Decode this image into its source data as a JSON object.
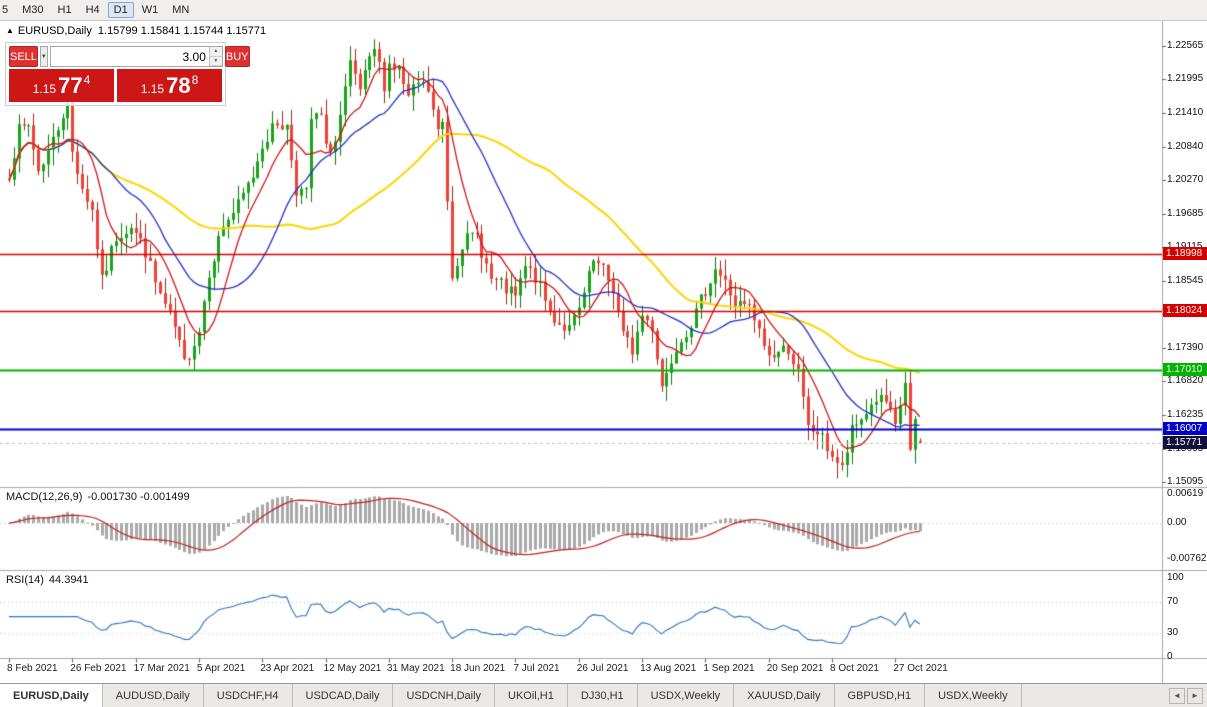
{
  "toolbar": {
    "timeframes": [
      {
        "label": "5",
        "active": false
      },
      {
        "label": "M30",
        "active": false
      },
      {
        "label": "H1",
        "active": false
      },
      {
        "label": "H4",
        "active": false
      },
      {
        "label": "D1",
        "active": true
      },
      {
        "label": "W1",
        "active": false
      },
      {
        "label": "MN",
        "active": false
      }
    ]
  },
  "chart_header": {
    "collapse_icon": "▲",
    "symbol_label": "EURUSD,Daily",
    "ohlc": "1.15799 1.15841 1.15744 1.15771"
  },
  "trade_panel": {
    "sell_label": "SELL",
    "buy_label": "BUY",
    "volume": "3.00",
    "dropdown_icon": "▼",
    "spin_up_icon": "▲",
    "spin_down_icon": "▼",
    "bid": {
      "prefix": "1.15",
      "big": "77",
      "sup": "4"
    },
    "ask": {
      "prefix": "1.15",
      "big": "78",
      "sup": "8"
    }
  },
  "price_axis": {
    "ticks": [
      "1.22565",
      "1.21995",
      "1.21410",
      "1.20840",
      "1.20270",
      "1.19685",
      "1.19115",
      "1.18545",
      "1.17975",
      "1.17390",
      "1.16820",
      "1.16235",
      "1.15665",
      "1.15095"
    ]
  },
  "levels": [
    {
      "price": 1.18998,
      "label": "1.18998",
      "line_color": "#d40000",
      "badge_color": "#d40000",
      "width": 1.5,
      "dashed": false
    },
    {
      "price": 1.18024,
      "label": "1.18024",
      "line_color": "#d40000",
      "badge_color": "#d40000",
      "width": 1.5,
      "dashed": false
    },
    {
      "price": 1.1701,
      "label": "1.17010",
      "line_color": "#00b400",
      "badge_color": "#00b400",
      "width": 2,
      "dashed": false
    },
    {
      "price": 1.16007,
      "label": "1.16007",
      "line_color": "#0000d0",
      "badge_color": "#0000c8",
      "width": 2,
      "dashed": false
    },
    {
      "price": 1.15771,
      "label": "1.15771",
      "line_color": "#c0c0c0",
      "badge_color": "#101038",
      "width": 1,
      "dashed": true
    }
  ],
  "macd_panel": {
    "title": "MACD(12,26,9)",
    "values": "-0.001730 -0.001499",
    "axis": [
      {
        "v": 0.00619,
        "label": "0.00619"
      },
      {
        "v": 0,
        "label": "0.00"
      },
      {
        "v": -0.00762,
        "label": "-0.00762"
      }
    ]
  },
  "rsi_panel": {
    "title": "RSI(14)",
    "value": "44.3941",
    "axis": [
      {
        "v": 100,
        "label": "100"
      },
      {
        "v": 70,
        "label": "70"
      },
      {
        "v": 30,
        "label": "30"
      },
      {
        "v": 0,
        "label": "0"
      }
    ],
    "levels": [
      70,
      30
    ]
  },
  "date_axis": [
    "8 Feb 2021",
    "26 Feb 2021",
    "17 Mar 2021",
    "5 Apr 2021",
    "23 Apr 2021",
    "12 May 2021",
    "31 May 2021",
    "18 Jun 2021",
    "7 Jul 2021",
    "26 Jul 2021",
    "13 Aug 2021",
    "1 Sep 2021",
    "20 Sep 2021",
    "8 Oct 2021",
    "27 Oct 2021"
  ],
  "tabs": {
    "items": [
      {
        "label": "EURUSD,Daily",
        "active": true
      },
      {
        "label": "AUDUSD,Daily",
        "active": false
      },
      {
        "label": "USDCHF,H4",
        "active": false
      },
      {
        "label": "USDCAD,Daily",
        "active": false
      },
      {
        "label": "USDCNH,Daily",
        "active": false
      },
      {
        "label": "UKOil,H1",
        "active": false
      },
      {
        "label": "DJ30,H1",
        "active": false
      },
      {
        "label": "USDX,Weekly",
        "active": false
      },
      {
        "label": "XAUUSD,Daily",
        "active": false
      },
      {
        "label": "GBPUSD,H1",
        "active": false
      },
      {
        "label": "USDX,Weekly",
        "active": false
      }
    ],
    "scroll_left": "◄",
    "scroll_right": "►"
  },
  "colors": {
    "candle_up": "#18a318",
    "candle_down": "#ef4135",
    "ma_fast": "#d01616",
    "ma_mid": "#2330c8",
    "ma_slow": "#ffd400",
    "macd_hist": "#a9a9a9",
    "macd_signal": "#c02020",
    "rsi_line": "#2e75c3",
    "trade_red": "#cd1717"
  },
  "chart_data": {
    "type": "candlestick",
    "symbol": "EURUSD",
    "timeframe": "Daily",
    "bars": 188,
    "ohlc_current": {
      "open": 1.15799,
      "high": 1.15841,
      "low": 1.15744,
      "close": 1.15771
    },
    "y_axis_ticks": [
      1.22565,
      1.21995,
      1.2141,
      1.2084,
      1.2027,
      1.19685,
      1.19115,
      1.18545,
      1.17975,
      1.1739,
      1.1682,
      1.16235,
      1.15665,
      1.15095
    ],
    "x_axis_labels": [
      "8 Feb 2021",
      "26 Feb 2021",
      "17 Mar 2021",
      "5 Apr 2021",
      "23 Apr 2021",
      "12 May 2021",
      "31 May 2021",
      "18 Jun 2021",
      "7 Jul 2021",
      "26 Jul 2021",
      "13 Aug 2021",
      "1 Sep 2021",
      "20 Sep 2021",
      "8 Oct 2021",
      "27 Oct 2021"
    ],
    "horizontal_levels": [
      1.18998,
      1.18024,
      1.1701,
      1.16007
    ],
    "bid": 1.15771,
    "anchors": [
      [
        0,
        1.204
      ],
      [
        2,
        1.211
      ],
      [
        4,
        1.212
      ],
      [
        6,
        1.2043
      ],
      [
        9,
        1.2095
      ],
      [
        12,
        1.2165
      ],
      [
        13,
        1.2075
      ],
      [
        15,
        1.2015
      ],
      [
        17,
        1.1975
      ],
      [
        19,
        1.1852
      ],
      [
        22,
        1.193
      ],
      [
        25,
        1.195
      ],
      [
        28,
        1.1905
      ],
      [
        30,
        1.185
      ],
      [
        32,
        1.181
      ],
      [
        34,
        1.1772
      ],
      [
        36,
        1.1712
      ],
      [
        39,
        1.177
      ],
      [
        41,
        1.1872
      ],
      [
        44,
        1.195
      ],
      [
        47,
        1.1982
      ],
      [
        50,
        1.2035
      ],
      [
        52,
        1.209
      ],
      [
        55,
        1.2125
      ],
      [
        57,
        1.2118
      ],
      [
        59,
        1.2012
      ],
      [
        61,
        1.2002
      ],
      [
        62,
        1.213
      ],
      [
        64,
        1.2135
      ],
      [
        65,
        1.2078
      ],
      [
        67,
        1.2092
      ],
      [
        70,
        1.222
      ],
      [
        72,
        1.218
      ],
      [
        75,
        1.225
      ],
      [
        77,
        1.2192
      ],
      [
        78,
        1.2226
      ],
      [
        80,
        1.2215
      ],
      [
        82,
        1.2165
      ],
      [
        84,
        1.2192
      ],
      [
        86,
        1.218
      ],
      [
        88,
        1.2108
      ],
      [
        89,
        1.2125
      ],
      [
        90,
        1.1995
      ],
      [
        91,
        1.1865
      ],
      [
        93,
        1.192
      ],
      [
        96,
        1.1932
      ],
      [
        99,
        1.1855
      ],
      [
        101,
        1.1845
      ],
      [
        104,
        1.1825
      ],
      [
        106,
        1.1876
      ],
      [
        108,
        1.186
      ],
      [
        111,
        1.18
      ],
      [
        113,
        1.1782
      ],
      [
        115,
        1.177
      ],
      [
        117,
        1.1802
      ],
      [
        120,
        1.1886
      ],
      [
        122,
        1.187
      ],
      [
        124,
        1.184
      ],
      [
        126,
        1.176
      ],
      [
        128,
        1.1736
      ],
      [
        130,
        1.1795
      ],
      [
        132,
        1.1777
      ],
      [
        134,
        1.1675
      ],
      [
        135,
        1.1697
      ],
      [
        137,
        1.1745
      ],
      [
        139,
        1.177
      ],
      [
        141,
        1.1797
      ],
      [
        143,
        1.184
      ],
      [
        145,
        1.1876
      ],
      [
        147,
        1.185
      ],
      [
        149,
        1.1815
      ],
      [
        152,
        1.1806
      ],
      [
        154,
        1.1765
      ],
      [
        156,
        1.1725
      ],
      [
        158,
        1.1732
      ],
      [
        160,
        1.174
      ],
      [
        162,
        1.1695
      ],
      [
        164,
        1.16
      ],
      [
        166,
        1.1595
      ],
      [
        169,
        1.1556
      ],
      [
        171,
        1.153
      ],
      [
        173,
        1.1595
      ],
      [
        176,
        1.163
      ],
      [
        178,
        1.1652
      ],
      [
        180,
        1.1645
      ],
      [
        182,
        1.16
      ],
      [
        184,
        1.1681
      ],
      [
        185,
        1.156
      ],
      [
        186,
        1.1606
      ],
      [
        187,
        1.15771
      ]
    ],
    "moving_averages": [
      {
        "name": "fast",
        "period": 8,
        "color": "#d01616"
      },
      {
        "name": "mid",
        "period": 20,
        "color": "#2330c8"
      },
      {
        "name": "slow",
        "period": 50,
        "color": "#ffd400"
      }
    ],
    "indicators": [
      {
        "name": "MACD",
        "params": [
          12,
          26,
          9
        ],
        "current_values": [
          -0.00173,
          -0.001499
        ],
        "axis": [
          0.00619,
          0,
          -0.00762
        ]
      },
      {
        "name": "RSI",
        "params": [
          14
        ],
        "current_value": 44.3941,
        "axis": [
          100,
          70,
          30,
          0
        ]
      }
    ]
  }
}
